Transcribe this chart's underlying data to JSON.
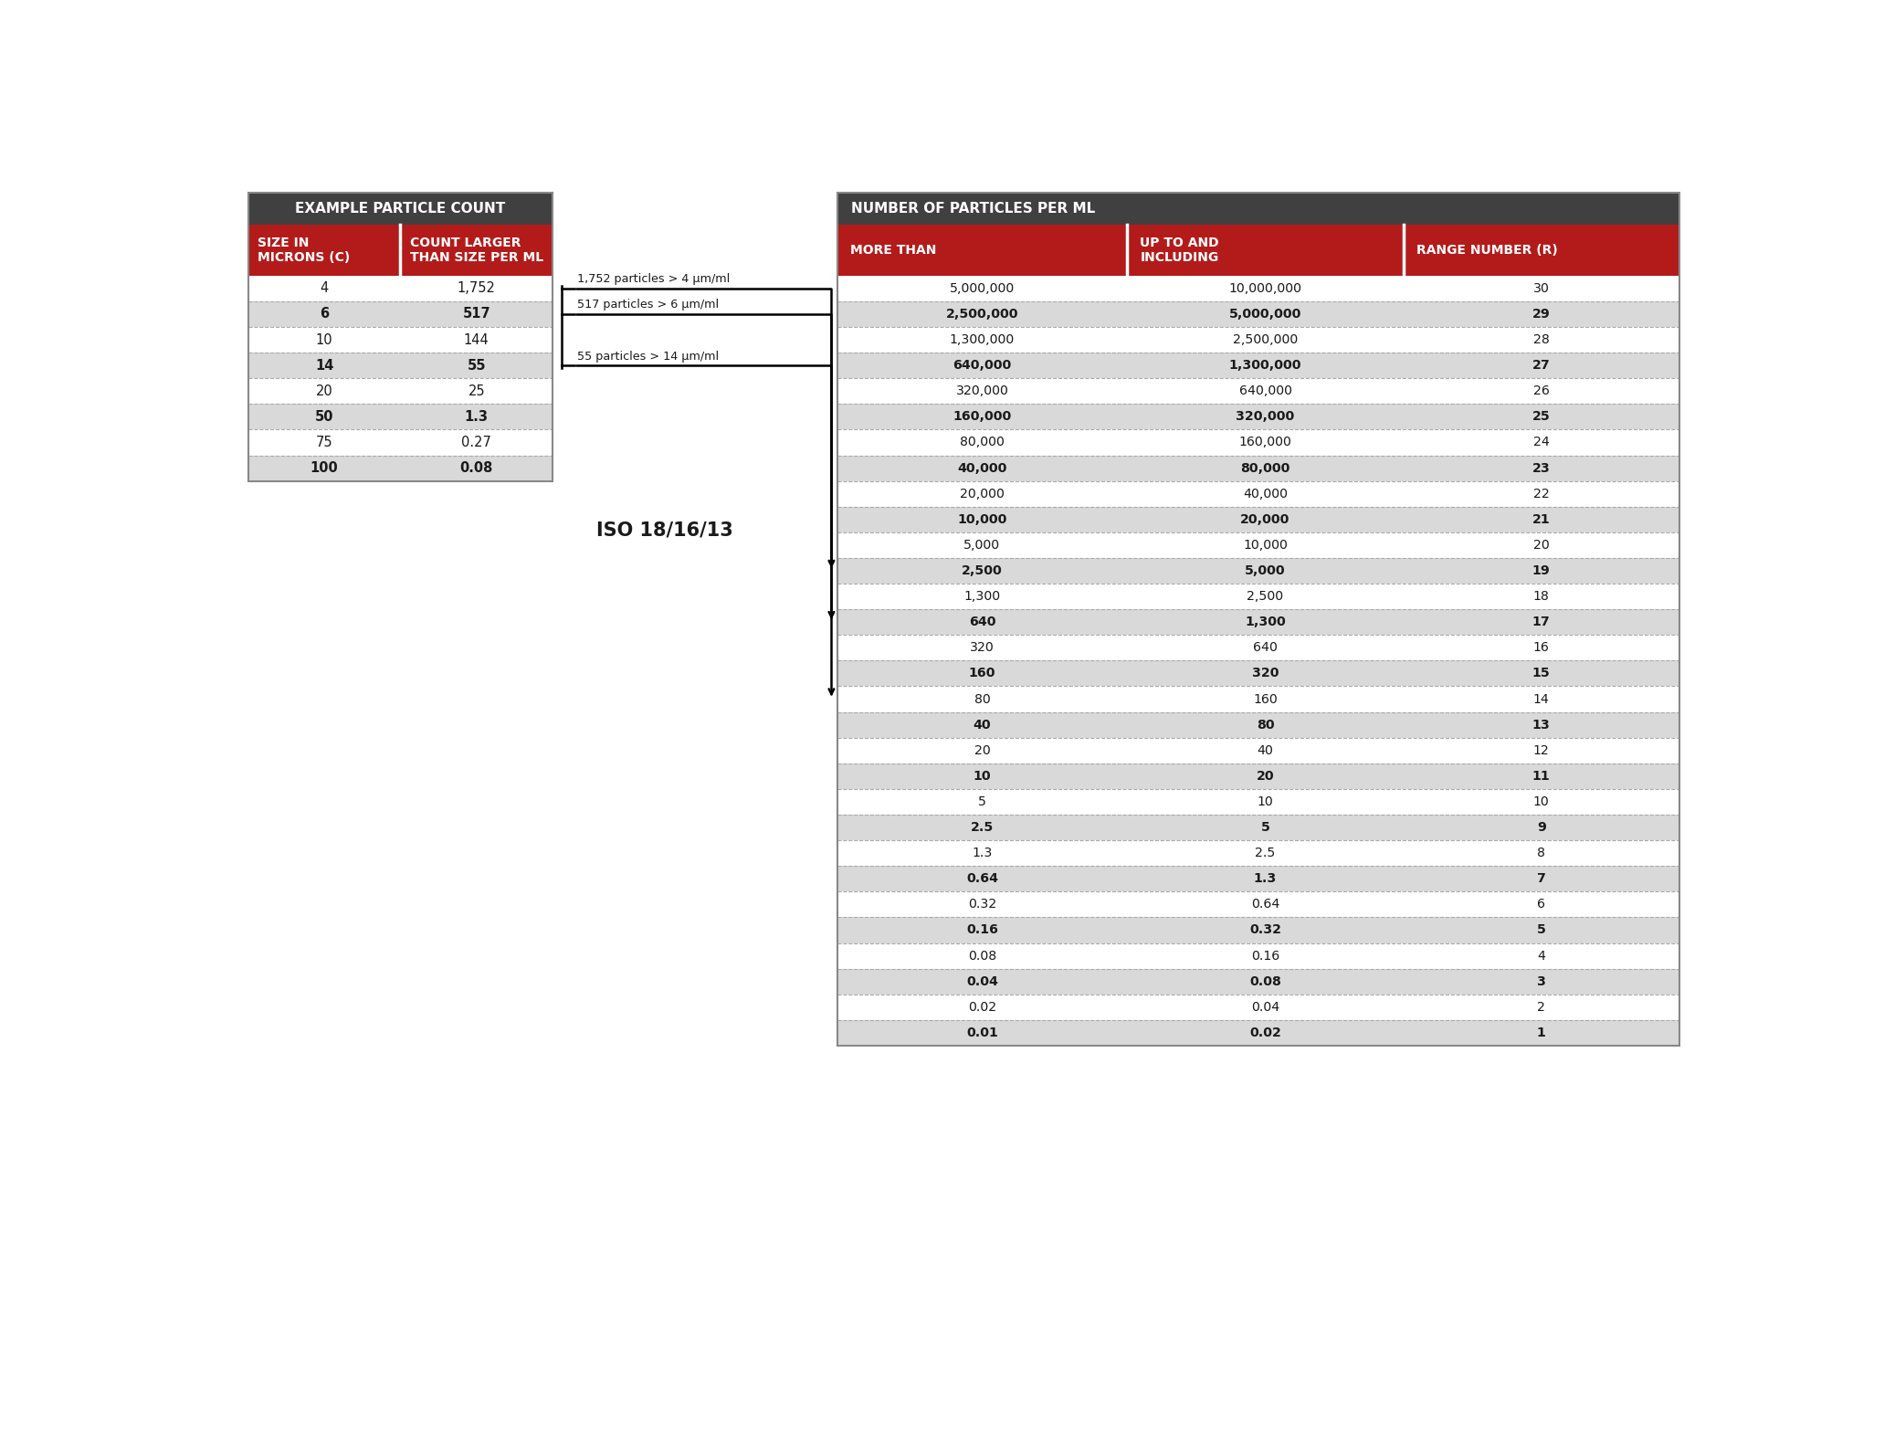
{
  "left_table_title": "EXAMPLE PARTICLE COUNT",
  "left_col1_header": "SIZE IN\nMICRONS (C)",
  "left_col2_header": "COUNT LARGER\nTHAN SIZE PER ML",
  "left_data": [
    [
      "4",
      "1,752"
    ],
    [
      "6",
      "517"
    ],
    [
      "10",
      "144"
    ],
    [
      "14",
      "55"
    ],
    [
      "20",
      "25"
    ],
    [
      "50",
      "1.3"
    ],
    [
      "75",
      "0.27"
    ],
    [
      "100",
      "0.08"
    ]
  ],
  "right_table_title": "NUMBER OF PARTICLES PER ML",
  "right_col1_header": "MORE THAN",
  "right_col2_header": "UP TO AND\nINCLUDING",
  "right_col3_header": "RANGE NUMBER (R)",
  "right_data": [
    [
      "5,000,000",
      "10,000,000",
      "30"
    ],
    [
      "2,500,000",
      "5,000,000",
      "29"
    ],
    [
      "1,300,000",
      "2,500,000",
      "28"
    ],
    [
      "640,000",
      "1,300,000",
      "27"
    ],
    [
      "320,000",
      "640,000",
      "26"
    ],
    [
      "160,000",
      "320,000",
      "25"
    ],
    [
      "80,000",
      "160,000",
      "24"
    ],
    [
      "40,000",
      "80,000",
      "23"
    ],
    [
      "20,000",
      "40,000",
      "22"
    ],
    [
      "10,000",
      "20,000",
      "21"
    ],
    [
      "5,000",
      "10,000",
      "20"
    ],
    [
      "2,500",
      "5,000",
      "19"
    ],
    [
      "1,300",
      "2,500",
      "18"
    ],
    [
      "640",
      "1,300",
      "17"
    ],
    [
      "320",
      "640",
      "16"
    ],
    [
      "160",
      "320",
      "15"
    ],
    [
      "80",
      "160",
      "14"
    ],
    [
      "40",
      "80",
      "13"
    ],
    [
      "20",
      "40",
      "12"
    ],
    [
      "10",
      "20",
      "11"
    ],
    [
      "5",
      "10",
      "10"
    ],
    [
      "2.5",
      "5",
      "9"
    ],
    [
      "1.3",
      "2.5",
      "8"
    ],
    [
      "0.64",
      "1.3",
      "7"
    ],
    [
      "0.32",
      "0.64",
      "6"
    ],
    [
      "0.16",
      "0.32",
      "5"
    ],
    [
      "0.08",
      "0.16",
      "4"
    ],
    [
      "0.04",
      "0.08",
      "3"
    ],
    [
      "0.02",
      "0.04",
      "2"
    ],
    [
      "0.01",
      "0.02",
      "1"
    ]
  ],
  "iso_label": "ISO 18/16/13",
  "arrow_labels": [
    "1,752 particles > 4 μm/ml",
    "517 particles > 6 μm/ml",
    "55 particles > 14 μm/ml"
  ],
  "arrow_target_rows": [
    11,
    13,
    16
  ],
  "dark_header_color": "#404040",
  "red_header_color": "#b31b1b",
  "alt_row_color": "#d9d9d9",
  "white_row_color": "#ffffff",
  "text_color": "#1a1a1a",
  "header_text_color": "#ffffff",
  "bg_color": "#ffffff"
}
